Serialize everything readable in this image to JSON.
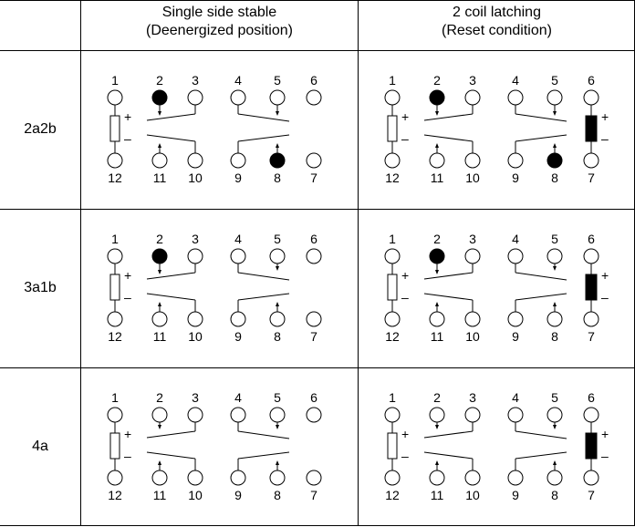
{
  "headers": [
    {
      "line1": "Single side stable",
      "line2": "(Deenergized position)"
    },
    {
      "line1": "2 coil latching",
      "line2": "(Reset condition)"
    }
  ],
  "rows": [
    {
      "label": "2a2b",
      "filled_pins": [
        2,
        8
      ],
      "contacts": [
        "NC",
        "NC",
        "NO",
        "NO"
      ]
    },
    {
      "label": "3a1b",
      "filled_pins": [
        2
      ],
      "contacts": [
        "NC",
        "NO",
        "NO",
        "NO"
      ]
    },
    {
      "label": "4a",
      "filled_pins": [],
      "contacts": [
        "NO",
        "NO",
        "NO",
        "NO"
      ]
    }
  ],
  "top_pins": [
    "1",
    "2",
    "3",
    "4",
    "5",
    "6"
  ],
  "bottom_pins": [
    "12",
    "11",
    "10",
    "9",
    "8",
    "7"
  ],
  "polarity": {
    "plus": "+",
    "minus": "–"
  },
  "colors": {
    "line": "#000000",
    "filled": "#000000",
    "open": "#ffffff"
  }
}
